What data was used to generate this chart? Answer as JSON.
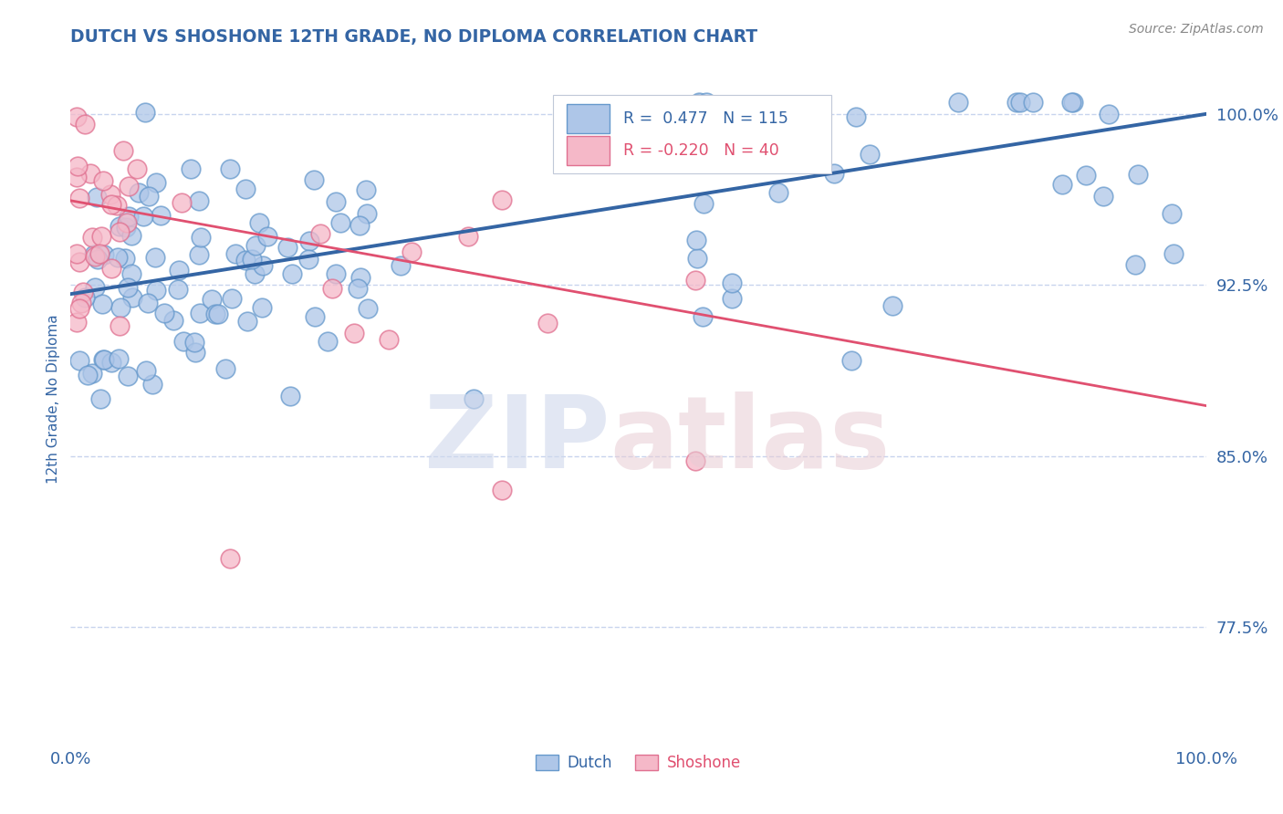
{
  "title": "DUTCH VS SHOSHONE 12TH GRADE, NO DIPLOMA CORRELATION CHART",
  "source_text": "Source: ZipAtlas.com",
  "ylabel": "12th Grade, No Diploma",
  "legend_dutch": "Dutch",
  "legend_shoshone": "Shoshone",
  "r_dutch": 0.477,
  "n_dutch": 115,
  "r_shoshone": -0.22,
  "n_shoshone": 40,
  "xlim": [
    0.0,
    1.0
  ],
  "ylim": [
    0.725,
    1.025
  ],
  "yticks": [
    0.775,
    0.85,
    0.925,
    1.0
  ],
  "ytick_labels": [
    "77.5%",
    "85.0%",
    "92.5%",
    "100.0%"
  ],
  "xticks": [
    0.0,
    1.0
  ],
  "xtick_labels": [
    "0.0%",
    "100.0%"
  ],
  "dutch_color": "#aec6e8",
  "dutch_edge_color": "#6699cc",
  "shoshone_color": "#f5b8c8",
  "shoshone_edge_color": "#e07090",
  "dutch_line_color": "#3465a4",
  "shoshone_line_color": "#e05070",
  "title_color": "#3465a4",
  "axis_label_color": "#3465a4",
  "tick_color": "#3465a4",
  "grid_color": "#c8d4ee",
  "background_color": "#ffffff",
  "dutch_line_start_y": 0.921,
  "dutch_line_end_y": 1.0,
  "shoshone_line_start_y": 0.962,
  "shoshone_line_end_y": 0.872
}
